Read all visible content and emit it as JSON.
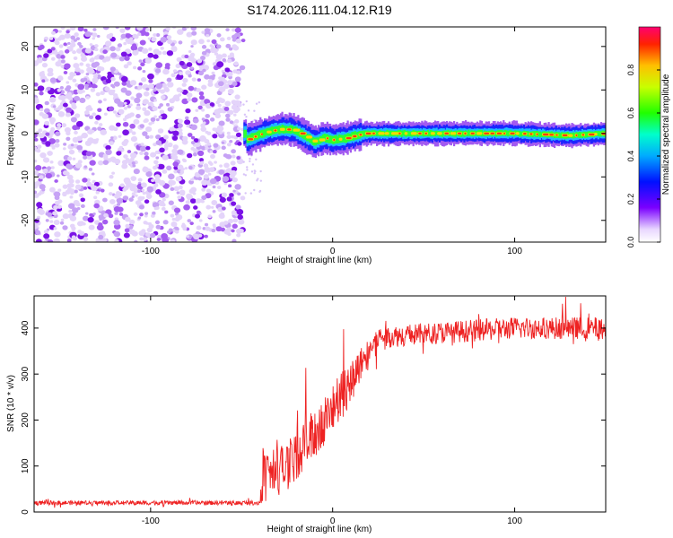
{
  "chart_data": [
    {
      "type": "heatmap",
      "title": "S174.2026.111.04.12.R19",
      "xlabel": "Height of straight line (km)",
      "ylabel": "Frequency (Hz)",
      "xlim": [
        -164,
        150
      ],
      "ylim": [
        -25,
        24.5
      ],
      "xticks": [
        -100,
        0,
        100
      ],
      "yticks": [
        -20,
        -10,
        0,
        10,
        20
      ],
      "noise_region_x": [
        -164,
        -49
      ],
      "signal_region_x": [
        -49,
        150
      ],
      "signal_track": [
        {
          "x": -48,
          "f": -1.5
        },
        {
          "x": -42,
          "f": -0.5
        },
        {
          "x": -35,
          "f": 0.5
        },
        {
          "x": -28,
          "f": 1.0
        },
        {
          "x": -22,
          "f": 0.8
        },
        {
          "x": -16,
          "f": -0.5
        },
        {
          "x": -10,
          "f": -2.0
        },
        {
          "x": -5,
          "f": -1.0
        },
        {
          "x": 0,
          "f": -1.5
        },
        {
          "x": 6,
          "f": -1.2
        },
        {
          "x": 12,
          "f": -0.5
        },
        {
          "x": 18,
          "f": 0.0
        },
        {
          "x": 60,
          "f": 0.0
        },
        {
          "x": 100,
          "f": 0.0
        },
        {
          "x": 130,
          "f": -0.5
        },
        {
          "x": 150,
          "f": 0.0
        }
      ],
      "colorbar": {
        "label": "Normalized spectral amplitude",
        "range": [
          0,
          1
        ],
        "ticks": [
          "0.0",
          "0.2",
          "0.4",
          "0.6",
          "0.8"
        ]
      }
    },
    {
      "type": "line",
      "xlabel": "Height of straight line (km)",
      "ylabel": "SNR (10 * v/v)",
      "xlim": [
        -164,
        150
      ],
      "ylim": [
        0,
        470
      ],
      "xticks": [
        -100,
        0,
        100
      ],
      "yticks": [
        0,
        100,
        200,
        300,
        400
      ],
      "series": [
        {
          "name": "SNR",
          "color": "#ee2222",
          "envelope": [
            {
              "x": -164,
              "level": 20,
              "spread": 8
            },
            {
              "x": -40,
              "level": 20,
              "spread": 8
            },
            {
              "x": -38,
              "level": 70,
              "spread": 90
            },
            {
              "x": -25,
              "level": 100,
              "spread": 90
            },
            {
              "x": -10,
              "level": 170,
              "spread": 90
            },
            {
              "x": 5,
              "level": 250,
              "spread": 90
            },
            {
              "x": 15,
              "level": 320,
              "spread": 60
            },
            {
              "x": 25,
              "level": 380,
              "spread": 40
            },
            {
              "x": 60,
              "level": 390,
              "spread": 40
            },
            {
              "x": 100,
              "level": 400,
              "spread": 40
            },
            {
              "x": 150,
              "level": 400,
              "spread": 40
            }
          ]
        }
      ]
    }
  ]
}
